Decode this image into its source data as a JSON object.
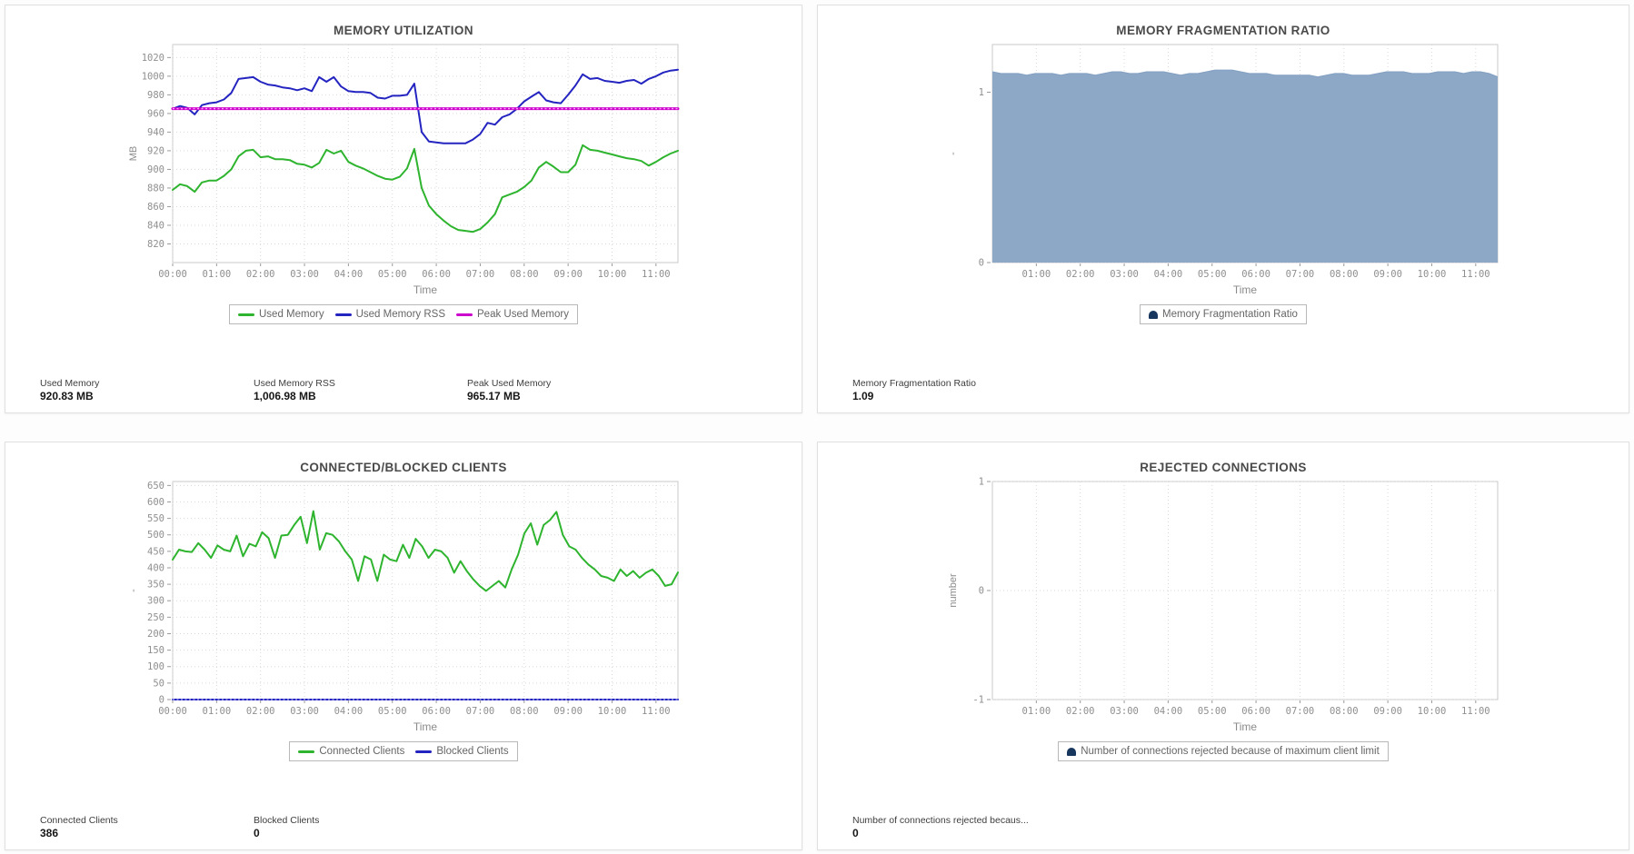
{
  "page": {
    "background": "#fdfdfd",
    "panel_border": "#e0e0e0"
  },
  "colors": {
    "green": "#2eb42e",
    "blue": "#2424c0",
    "magenta": "#cc00cc",
    "magenta_overlay": "#ff9dff",
    "blue_overlay": "#9b9be8",
    "area_fill": "#8da7c7",
    "area_edge": "#83a0c2",
    "legend_area_icon": "#17375e",
    "grid": "#d9d9d9",
    "plot_border": "#c9c9c9",
    "tick_text": "#8f8f8f",
    "axis_title_text": "#8a8a8a",
    "title_text": "#4a4a4a"
  },
  "chart_data": [
    {
      "id": "memory-utilization",
      "type": "line",
      "title": "MEMORY UTILIZATION",
      "xlabel": "Time",
      "ylabel": "MB",
      "xlim": [
        0,
        11.5
      ],
      "ylim": [
        800,
        1034
      ],
      "grid": true,
      "legend_position": "bottom",
      "xticks": {
        "hours": [
          0,
          1,
          2,
          3,
          4,
          5,
          6,
          7,
          8,
          9,
          10,
          11
        ],
        "labels": [
          "00:00",
          "01:00",
          "02:00",
          "03:00",
          "04:00",
          "05:00",
          "06:00",
          "07:00",
          "08:00",
          "09:00",
          "10:00",
          "11:00"
        ]
      },
      "yticks": [
        820,
        840,
        860,
        880,
        900,
        920,
        940,
        960,
        980,
        1000,
        1020
      ],
      "series": [
        {
          "name": "Used Memory",
          "type": "line",
          "color": "#2eb42e",
          "swatch": "line",
          "values": [
            878,
            884,
            882,
            876,
            886,
            888,
            888,
            893,
            900,
            914,
            920,
            921,
            913,
            914,
            911,
            911,
            910,
            906,
            905,
            902,
            907,
            921,
            917,
            920,
            908,
            904,
            901,
            897,
            893,
            890,
            889,
            892,
            901,
            922,
            880,
            861,
            852,
            845,
            839,
            835,
            834,
            833,
            836,
            843,
            852,
            870,
            873,
            876,
            881,
            888,
            902,
            908,
            903,
            897,
            897,
            905,
            926,
            921,
            920,
            918,
            916,
            914,
            912,
            911,
            909,
            904,
            908,
            913,
            917,
            920
          ]
        },
        {
          "name": "Used Memory RSS",
          "type": "line",
          "color": "#2424c0",
          "swatch": "line",
          "values": [
            965,
            968,
            966,
            959,
            969,
            971,
            972,
            975,
            982,
            997,
            998,
            999,
            994,
            991,
            990,
            988,
            987,
            985,
            987,
            984,
            999,
            994,
            999,
            989,
            984,
            983,
            983,
            982,
            977,
            976,
            979,
            979,
            980,
            992,
            940,
            930,
            929,
            928,
            928,
            928,
            928,
            932,
            938,
            950,
            948,
            956,
            959,
            965,
            973,
            978,
            983,
            974,
            972,
            971,
            980,
            990,
            1002,
            997,
            998,
            995,
            994,
            993,
            995,
            996,
            992,
            997,
            1000,
            1004,
            1006,
            1007
          ]
        },
        {
          "name": "Peak Used Memory",
          "type": "line",
          "color": "#cc00cc",
          "swatch": "line",
          "overlay": "#ff9dff",
          "width": 3,
          "values": [
            965.17,
            965.17
          ]
        }
      ],
      "stats": [
        {
          "label": "Used Memory",
          "value": "920.83 MB"
        },
        {
          "label": "Used Memory RSS",
          "value": "1,006.98 MB"
        },
        {
          "label": "Peak Used Memory",
          "value": "965.17 MB"
        }
      ]
    },
    {
      "id": "memory-fragmentation-ratio",
      "type": "area",
      "title": "MEMORY FRAGMENTATION RATIO",
      "xlabel": "Time",
      "ylabel": "-",
      "xlim": [
        0,
        11.5
      ],
      "ylim": [
        0,
        1.28
      ],
      "grid": true,
      "legend_position": "bottom",
      "xticks": {
        "hours": [
          1,
          2,
          3,
          4,
          5,
          6,
          7,
          8,
          9,
          10,
          11
        ],
        "labels": [
          "01:00",
          "02:00",
          "03:00",
          "04:00",
          "05:00",
          "06:00",
          "07:00",
          "08:00",
          "09:00",
          "10:00",
          "11:00"
        ]
      },
      "yticks": [
        0,
        1
      ],
      "series": [
        {
          "name": "Memory Fragmentation Ratio",
          "type": "area",
          "color": "#8da7c7",
          "edge": "#83a0c2",
          "swatch": "area",
          "values": [
            1.12,
            1.11,
            1.11,
            1.11,
            1.1,
            1.11,
            1.11,
            1.11,
            1.1,
            1.11,
            1.11,
            1.11,
            1.1,
            1.11,
            1.12,
            1.12,
            1.11,
            1.11,
            1.12,
            1.12,
            1.12,
            1.11,
            1.1,
            1.11,
            1.11,
            1.12,
            1.13,
            1.13,
            1.13,
            1.12,
            1.11,
            1.11,
            1.11,
            1.1,
            1.1,
            1.1,
            1.1,
            1.1,
            1.09,
            1.1,
            1.11,
            1.11,
            1.1,
            1.1,
            1.1,
            1.11,
            1.12,
            1.12,
            1.12,
            1.11,
            1.11,
            1.11,
            1.12,
            1.12,
            1.12,
            1.11,
            1.12,
            1.12,
            1.11,
            1.09
          ]
        }
      ],
      "stats": [
        {
          "label": "Memory Fragmentation Ratio",
          "value": "1.09"
        }
      ]
    },
    {
      "id": "connected-blocked-clients",
      "type": "line",
      "title": "CONNECTED/BLOCKED CLIENTS",
      "xlabel": "Time",
      "ylabel": "-",
      "xlim": [
        0,
        11.5
      ],
      "ylim": [
        0,
        662
      ],
      "grid": true,
      "legend_position": "bottom",
      "xticks": {
        "hours": [
          0,
          1,
          2,
          3,
          4,
          5,
          6,
          7,
          8,
          9,
          10,
          11
        ],
        "labels": [
          "00:00",
          "01:00",
          "02:00",
          "03:00",
          "04:00",
          "05:00",
          "06:00",
          "07:00",
          "08:00",
          "09:00",
          "10:00",
          "11:00"
        ]
      },
      "yticks": [
        0,
        50,
        100,
        150,
        200,
        250,
        300,
        350,
        400,
        450,
        500,
        550,
        600,
        650
      ],
      "series": [
        {
          "name": "Connected Clients",
          "type": "line",
          "color": "#2eb42e",
          "swatch": "line",
          "values": [
            425,
            455,
            450,
            448,
            475,
            455,
            430,
            468,
            455,
            450,
            498,
            435,
            473,
            465,
            508,
            490,
            430,
            498,
            500,
            530,
            555,
            475,
            572,
            455,
            505,
            500,
            480,
            450,
            425,
            360,
            435,
            425,
            360,
            440,
            425,
            420,
            470,
            430,
            488,
            465,
            430,
            455,
            450,
            430,
            385,
            420,
            390,
            365,
            345,
            330,
            345,
            360,
            340,
            395,
            440,
            505,
            535,
            470,
            530,
            545,
            570,
            500,
            465,
            455,
            430,
            410,
            395,
            375,
            370,
            360,
            395,
            375,
            390,
            370,
            385,
            395,
            375,
            345,
            350,
            386
          ]
        },
        {
          "name": "Blocked Clients",
          "type": "line",
          "color": "#2424c0",
          "swatch": "line",
          "overlay": "#9b9be8",
          "values": [
            0,
            0
          ]
        }
      ],
      "stats": [
        {
          "label": "Connected Clients",
          "value": "386"
        },
        {
          "label": "Blocked Clients",
          "value": "0"
        }
      ]
    },
    {
      "id": "rejected-connections",
      "type": "area",
      "title": "REJECTED CONNECTIONS",
      "xlabel": "Time",
      "ylabel": "number",
      "xlim": [
        0,
        11.5
      ],
      "ylim": [
        -1,
        1
      ],
      "grid": true,
      "legend_position": "bottom",
      "xticks": {
        "hours": [
          1,
          2,
          3,
          4,
          5,
          6,
          7,
          8,
          9,
          10,
          11
        ],
        "labels": [
          "01:00",
          "02:00",
          "03:00",
          "04:00",
          "05:00",
          "06:00",
          "07:00",
          "08:00",
          "09:00",
          "10:00",
          "11:00"
        ]
      },
      "yticks": [
        -1,
        0,
        1
      ],
      "series": [
        {
          "name": "Number of connections rejected because of maximum client limit",
          "type": "area",
          "color": "#8da7c7",
          "edge": "#83a0c2",
          "swatch": "area",
          "values": []
        }
      ],
      "stats": [
        {
          "label": "Number of connections rejected becaus...",
          "value": "0"
        }
      ]
    }
  ]
}
